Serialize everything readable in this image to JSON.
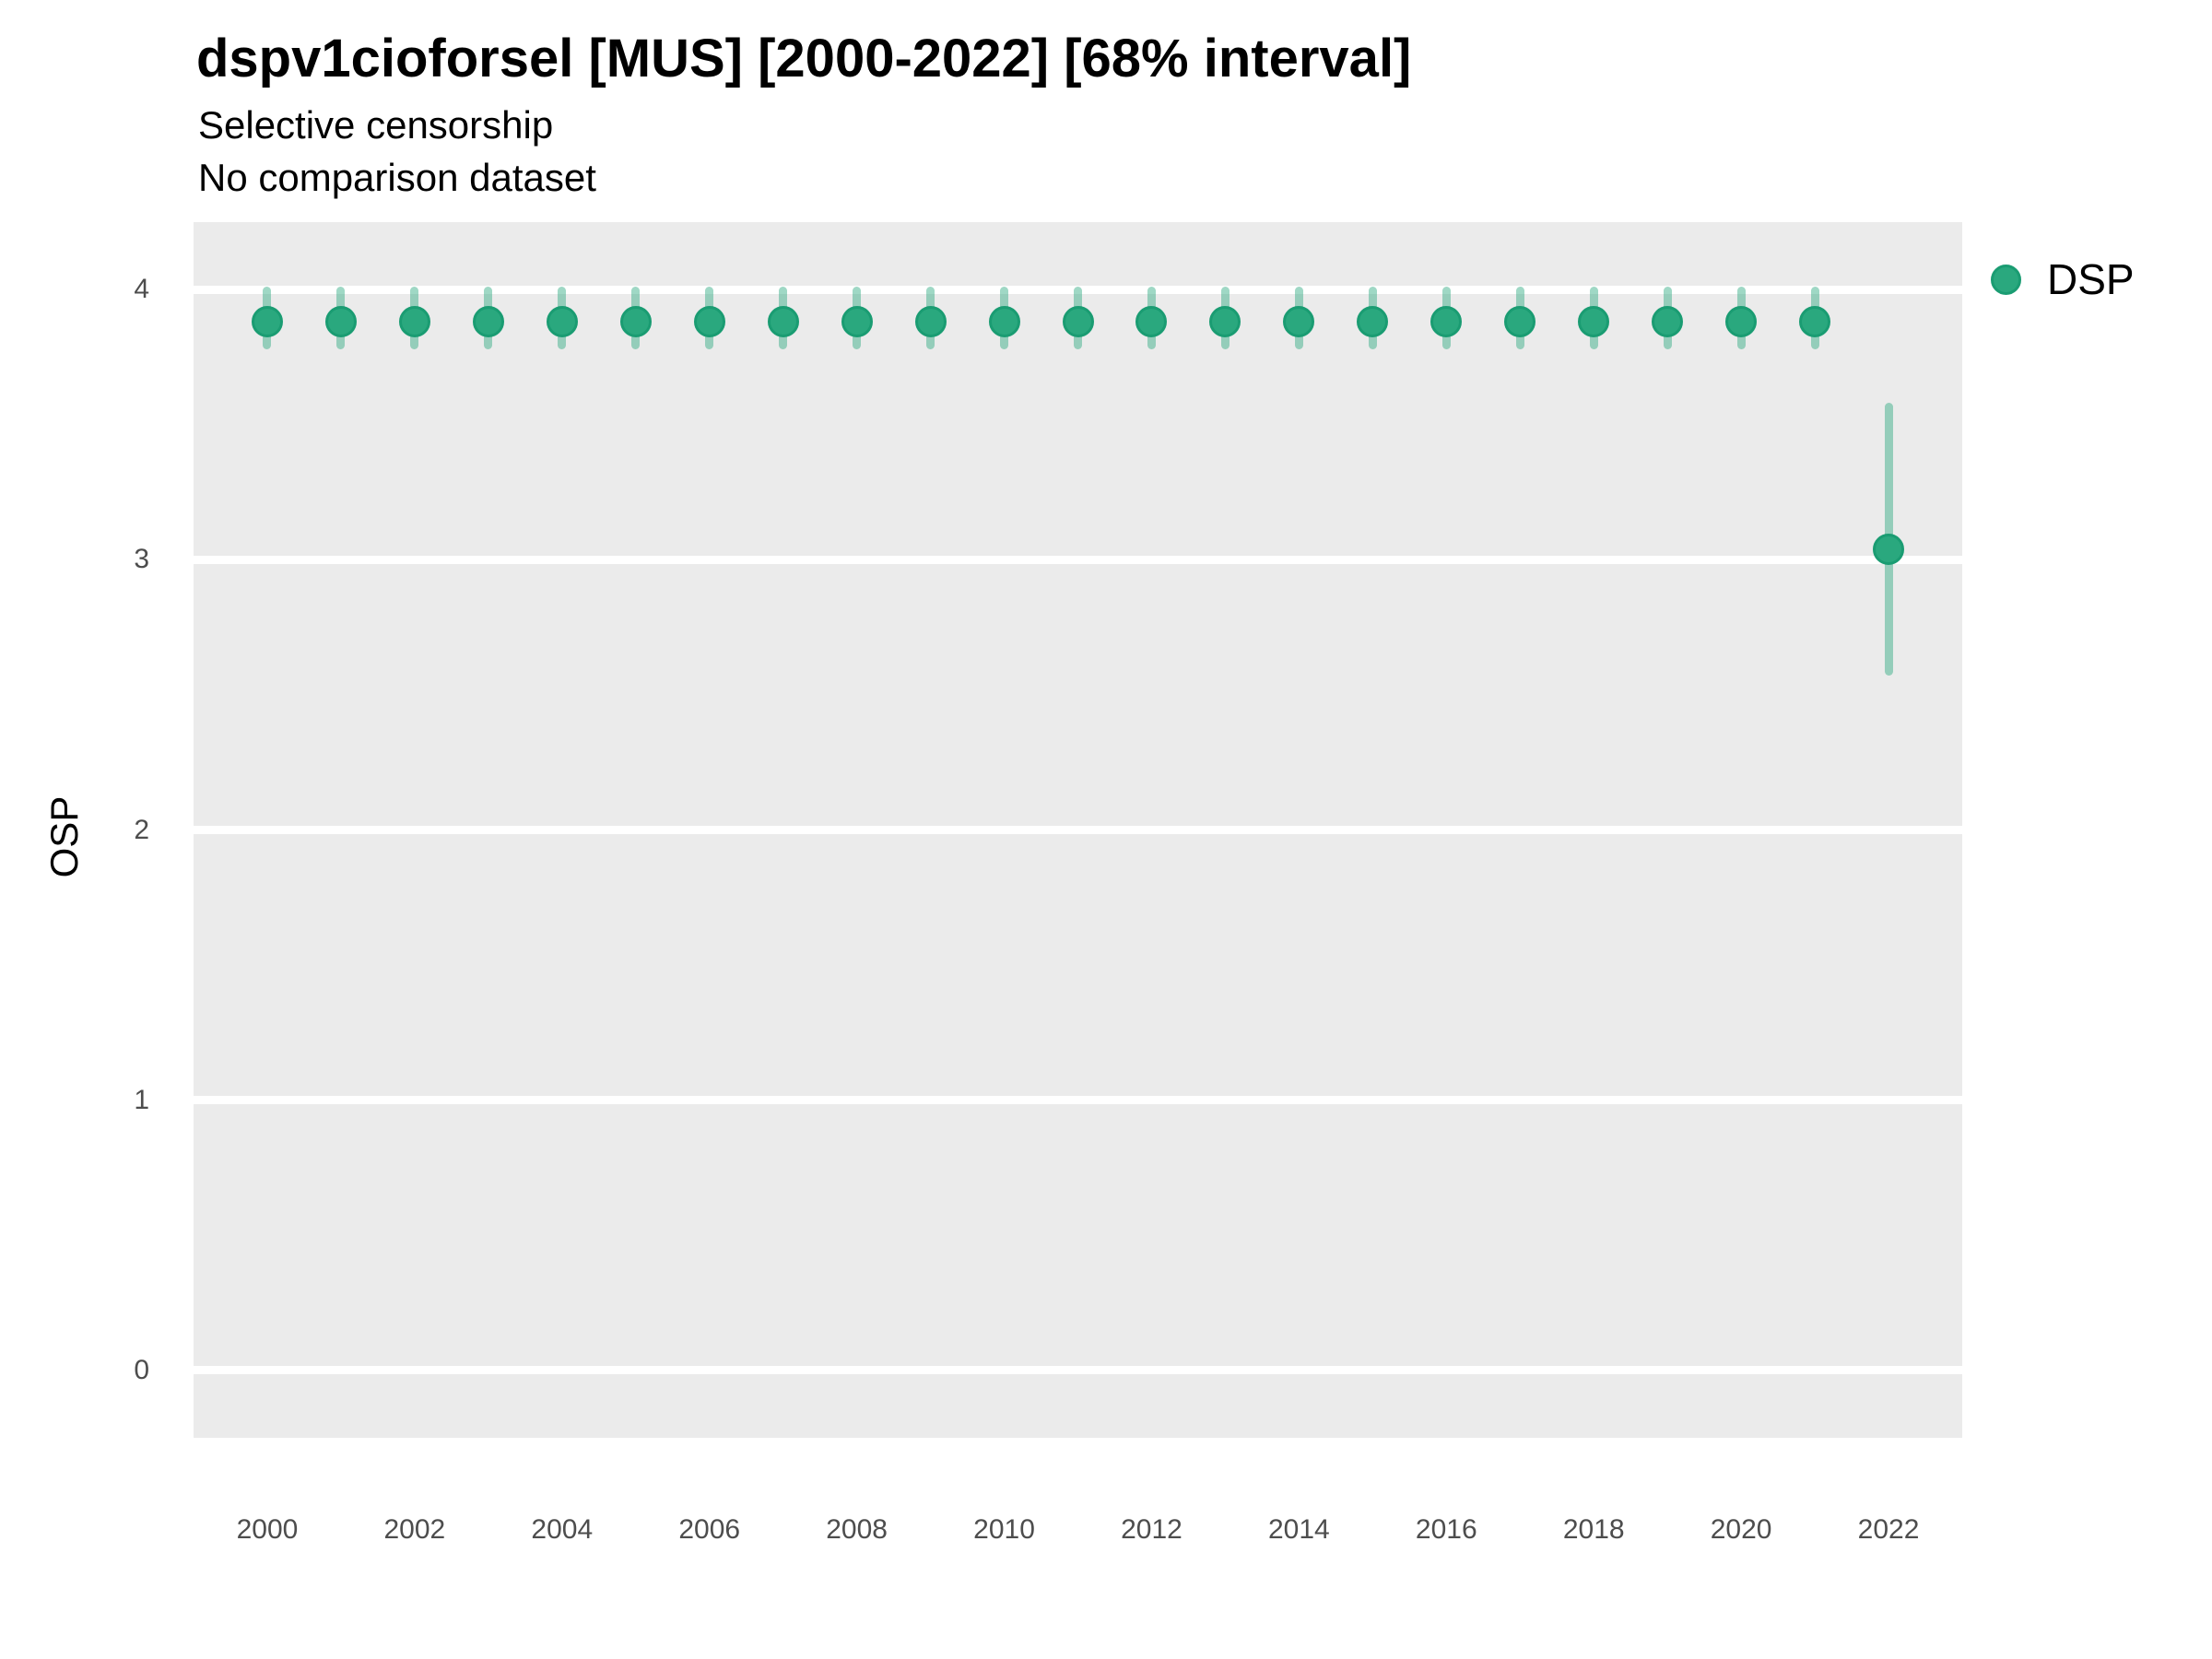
{
  "header": {
    "title": "dspv1cioforsel [MUS] [2000-2022] [68% interval]",
    "subtitle_line1": "Selective censorship",
    "subtitle_line2": "No comparison dataset"
  },
  "legend": {
    "position": "right-top",
    "items": [
      {
        "label": "DSP",
        "color": "#2aa87e"
      }
    ]
  },
  "axes": {
    "y_label": "OSP",
    "x_label": "",
    "y_ticks": [
      "0",
      "1",
      "2",
      "3",
      "4"
    ],
    "x_ticks": [
      "2000",
      "2002",
      "2004",
      "2006",
      "2008",
      "2010",
      "2012",
      "2014",
      "2016",
      "2018",
      "2020",
      "2022"
    ]
  },
  "chart_data": {
    "type": "scatter",
    "subtype": "pointrange",
    "title": "dspv1cioforsel [MUS] [2000-2022] [68% interval]",
    "subtitle": [
      "Selective censorship",
      "No comparison dataset"
    ],
    "xlabel": "",
    "ylabel": "OSP",
    "xlim": [
      1999,
      2023
    ],
    "ylim": [
      -0.25,
      4.25
    ],
    "grid": "horizontal major white gridlines on gray panel, no vertical gridlines, no minor gridlines",
    "legend_position": "right-top",
    "interval_level": "68%",
    "series": [
      {
        "name": "DSP",
        "x": [
          2000,
          2001,
          2002,
          2003,
          2004,
          2005,
          2006,
          2007,
          2008,
          2009,
          2010,
          2011,
          2012,
          2013,
          2014,
          2015,
          2016,
          2017,
          2018,
          2019,
          2020,
          2021,
          2022
        ],
        "y": [
          3.88,
          3.88,
          3.88,
          3.88,
          3.88,
          3.88,
          3.88,
          3.88,
          3.88,
          3.88,
          3.88,
          3.88,
          3.88,
          3.88,
          3.88,
          3.88,
          3.88,
          3.88,
          3.88,
          3.88,
          3.88,
          3.88,
          3.04
        ],
        "y_low": [
          3.78,
          3.78,
          3.78,
          3.78,
          3.78,
          3.78,
          3.78,
          3.78,
          3.78,
          3.78,
          3.78,
          3.78,
          3.78,
          3.78,
          3.78,
          3.78,
          3.78,
          3.78,
          3.78,
          3.78,
          3.78,
          3.78,
          2.57
        ],
        "y_high": [
          4.01,
          4.01,
          4.01,
          4.01,
          4.01,
          4.01,
          4.01,
          4.01,
          4.01,
          4.01,
          4.01,
          4.01,
          4.01,
          4.01,
          4.01,
          4.01,
          4.01,
          4.01,
          4.01,
          4.01,
          4.01,
          4.01,
          3.58
        ]
      }
    ]
  },
  "colors": {
    "point_fill": "#2aa87e",
    "point_stroke": "#1a9c72",
    "interval_bar": "rgba(42, 168, 126, 0.45)",
    "panel_bg": "#ebebeb",
    "gridline": "#ffffff",
    "tick_text": "#4d4d4d",
    "title_text": "#000000",
    "page_bg": "#ffffff"
  }
}
